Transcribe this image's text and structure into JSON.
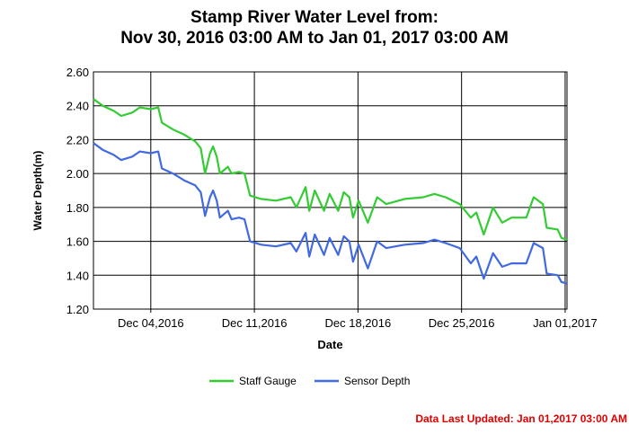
{
  "chart_data": {
    "type": "line",
    "title": "Stamp River Water Level from:",
    "subtitle": "Nov 30, 2016 03:00 AM to Jan 01, 2017 03:00 AM",
    "xlabel": "Date",
    "ylabel": "Water Depth(m)",
    "xlim": [
      "2016-11-30T03:00",
      "2017-01-01T03:00"
    ],
    "ylim": [
      1.2,
      2.6
    ],
    "yticks": [
      "1.20",
      "1.40",
      "1.60",
      "1.80",
      "2.00",
      "2.20",
      "2.40",
      "2.60"
    ],
    "xticks": [
      {
        "date": "2016-12-04T00:00",
        "label": "Dec 04,2016"
      },
      {
        "date": "2016-12-11T00:00",
        "label": "Dec 11,2016"
      },
      {
        "date": "2016-12-18T00:00",
        "label": "Dec 18,2016"
      },
      {
        "date": "2016-12-25T00:00",
        "label": "Dec 25,2016"
      },
      {
        "date": "2017-01-01T00:00",
        "label": "Jan 01,2017"
      }
    ],
    "grid": true,
    "legend_position": "bottom",
    "x": [
      "2016-11-30T03:00",
      "2016-11-30T18:00",
      "2016-12-01T12:00",
      "2016-12-02T00:00",
      "2016-12-02T18:00",
      "2016-12-03T06:00",
      "2016-12-04T00:00",
      "2016-12-04T12:00",
      "2016-12-04T18:00",
      "2016-12-05T12:00",
      "2016-12-06T06:00",
      "2016-12-07T00:00",
      "2016-12-07T09:00",
      "2016-12-07T16:00",
      "2016-12-08T00:00",
      "2016-12-08T05:00",
      "2016-12-08T11:00",
      "2016-12-08T16:00",
      "2016-12-09T05:00",
      "2016-12-09T11:00",
      "2016-12-09T23:00",
      "2016-12-10T08:00",
      "2016-12-10T17:00",
      "2016-12-11T11:00",
      "2016-12-12T11:00",
      "2016-12-13T11:00",
      "2016-12-13T20:00",
      "2016-12-14T11:00",
      "2016-12-14T17:00",
      "2016-12-15T02:00",
      "2016-12-15T17:00",
      "2016-12-16T02:00",
      "2016-12-16T16:00",
      "2016-12-17T01:00",
      "2016-12-17T10:00",
      "2016-12-17T16:00",
      "2016-12-18T01:00",
      "2016-12-18T16:00",
      "2016-12-19T07:00",
      "2016-12-19T22:00",
      "2016-12-21T04:00",
      "2016-12-22T10:00",
      "2016-12-23T04:00",
      "2016-12-23T22:00",
      "2016-12-24T21:00",
      "2016-12-25T15:00",
      "2016-12-26T00:00",
      "2016-12-26T12:00",
      "2016-12-27T03:00",
      "2016-12-27T18:00",
      "2016-12-28T09:00",
      "2016-12-29T09:00",
      "2016-12-29T21:00",
      "2016-12-30T12:00",
      "2016-12-30T18:00",
      "2016-12-31T12:00",
      "2016-12-31T18:00",
      "2017-01-01T03:00"
    ],
    "series": [
      {
        "name": "Staff Gauge",
        "color": "#33cc33",
        "values": [
          2.44,
          2.4,
          2.37,
          2.34,
          2.36,
          2.39,
          2.38,
          2.39,
          2.3,
          2.26,
          2.23,
          2.19,
          2.15,
          2.0,
          2.12,
          2.16,
          2.1,
          2.0,
          2.04,
          2.0,
          2.01,
          2.0,
          1.87,
          1.85,
          1.84,
          1.86,
          1.8,
          1.92,
          1.78,
          1.9,
          1.78,
          1.88,
          1.78,
          1.89,
          1.86,
          1.74,
          1.84,
          1.71,
          1.86,
          1.82,
          1.85,
          1.86,
          1.88,
          1.86,
          1.82,
          1.74,
          1.77,
          1.64,
          1.8,
          1.71,
          1.74,
          1.74,
          1.86,
          1.82,
          1.68,
          1.67,
          1.62,
          1.61
        ]
      },
      {
        "name": "Sensor Depth",
        "color": "#4169e1",
        "values": [
          2.18,
          2.14,
          2.11,
          2.08,
          2.1,
          2.13,
          2.12,
          2.13,
          2.03,
          2.0,
          1.96,
          1.93,
          1.89,
          1.75,
          1.86,
          1.9,
          1.84,
          1.74,
          1.78,
          1.73,
          1.74,
          1.73,
          1.6,
          1.58,
          1.57,
          1.59,
          1.54,
          1.65,
          1.51,
          1.64,
          1.52,
          1.62,
          1.52,
          1.63,
          1.6,
          1.48,
          1.58,
          1.44,
          1.6,
          1.56,
          1.58,
          1.59,
          1.61,
          1.59,
          1.56,
          1.47,
          1.51,
          1.38,
          1.53,
          1.45,
          1.47,
          1.47,
          1.59,
          1.56,
          1.41,
          1.4,
          1.36,
          1.35
        ]
      }
    ]
  },
  "footer": "Data Last Updated: Jan 01,2017 03:00 AM"
}
